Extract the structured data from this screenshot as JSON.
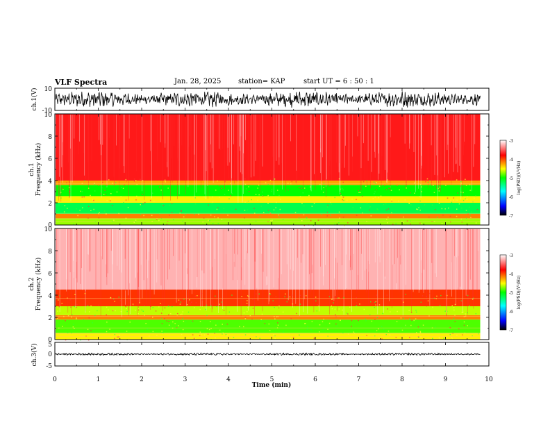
{
  "header": {
    "title": "VLF Spectra",
    "date": "Jan. 28, 2025",
    "station": "station= KAP",
    "start": "start  UT =   6 : 50 : 1"
  },
  "colors": {
    "spectrogram_scale": [
      "#000000",
      "#0000ff",
      "#00ffff",
      "#00ff00",
      "#ffff00",
      "#ff0000",
      "#ffffff"
    ]
  },
  "chart_data": [
    {
      "id": "ch1-waveform",
      "type": "line",
      "ylabel": "ch.1(V)",
      "yticks": [
        "10",
        "-10"
      ],
      "ylim": [
        -10,
        10
      ],
      "xlim": [
        0,
        10
      ],
      "data_extent_min": 9.8,
      "amplitude_range": [
        -8,
        8
      ]
    },
    {
      "id": "ch1-spectrogram",
      "type": "heatmap",
      "ylabel_line1": "ch.1",
      "ylabel_line2": "Frequency  (kHz)",
      "yticks": [
        "0",
        "2",
        "4",
        "6",
        "8",
        "10"
      ],
      "ylim": [
        0,
        10
      ],
      "colorbar_label": "log(PSD)(V²/Hz)",
      "colorbar_ticks": [
        "-3",
        "-4",
        "-5",
        "-6",
        "-7"
      ],
      "colorbar_range": [
        -7,
        -3
      ],
      "bands": [
        {
          "from": 0,
          "to": 0.6,
          "level": -4.6
        },
        {
          "from": 0.6,
          "to": 1.0,
          "level": -4.0
        },
        {
          "from": 1.0,
          "to": 2.0,
          "level": -5.2
        },
        {
          "from": 2.0,
          "to": 2.6,
          "level": -4.3
        },
        {
          "from": 2.6,
          "to": 3.6,
          "level": -5.0
        },
        {
          "from": 3.6,
          "to": 4.0,
          "level": -4.1
        },
        {
          "from": 4.0,
          "to": 10.0,
          "level": -3.6
        }
      ]
    },
    {
      "id": "ch2-spectrogram",
      "type": "heatmap",
      "ylabel_line1": "ch.2",
      "ylabel_line2": "Frequency  (kHz)",
      "yticks": [
        "0",
        "2",
        "4",
        "6",
        "8",
        "10"
      ],
      "ylim": [
        0,
        10
      ],
      "colorbar_label": "log(PSD)(V²/Hz)",
      "colorbar_ticks": [
        "-3",
        "-4",
        "-5",
        "-6",
        "-7"
      ],
      "colorbar_range": [
        -7,
        -3
      ],
      "bands": [
        {
          "from": 0,
          "to": 0.6,
          "level": -4.3
        },
        {
          "from": 0.6,
          "to": 1.8,
          "level": -4.8
        },
        {
          "from": 1.8,
          "to": 2.2,
          "level": -4.0
        },
        {
          "from": 2.2,
          "to": 3.0,
          "level": -4.5
        },
        {
          "from": 3.0,
          "to": 4.5,
          "level": -3.8
        },
        {
          "from": 4.5,
          "to": 10.0,
          "level": -3.2
        }
      ]
    },
    {
      "id": "ch3-waveform",
      "type": "line",
      "ylabel": "ch.3(V)",
      "yticks": [
        "5",
        "0",
        "-5"
      ],
      "ylim": [
        -5,
        5
      ],
      "xlim": [
        0,
        10
      ],
      "data_extent_min": 9.8,
      "amplitude_range": [
        -0.5,
        0.5
      ]
    }
  ],
  "xaxis": {
    "label": "Time  (min)",
    "ticks": [
      "0",
      "1",
      "2",
      "3",
      "4",
      "5",
      "6",
      "7",
      "8",
      "9",
      "10"
    ],
    "xlim": [
      0,
      10
    ]
  }
}
